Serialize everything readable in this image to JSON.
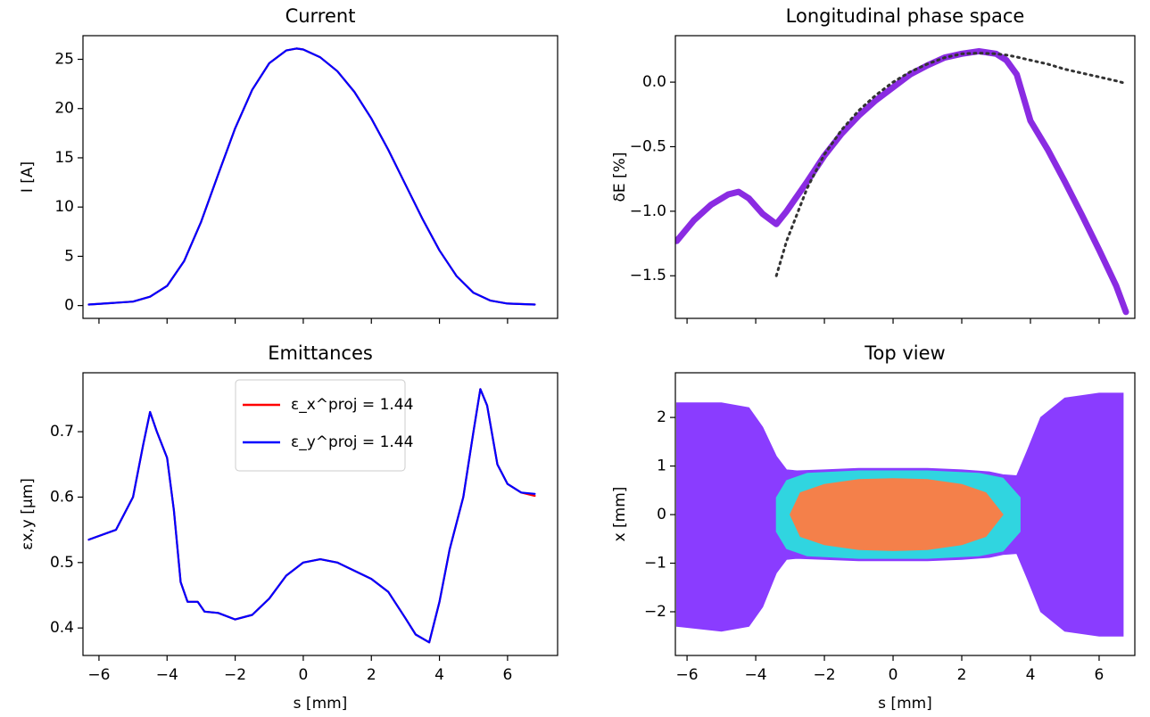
{
  "chart_data": [
    {
      "type": "line",
      "title": "Current",
      "ylabel": "I [A]",
      "x": [
        -6.3,
        -5,
        -4.5,
        -4,
        -3.5,
        -3,
        -2.5,
        -2,
        -1.5,
        -1,
        -0.5,
        -0.2,
        0,
        0.5,
        1,
        1.5,
        2,
        2.5,
        3,
        3.5,
        4,
        4.5,
        5,
        5.5,
        6,
        6.8
      ],
      "series": [
        {
          "color": "#ff0000",
          "values": [
            0.1,
            0.4,
            0.9,
            2.0,
            4.5,
            8.5,
            13.3,
            18.0,
            21.9,
            24.6,
            25.9,
            26.1,
            26.0,
            25.2,
            23.8,
            21.7,
            19.0,
            15.8,
            12.3,
            8.8,
            5.6,
            3.0,
            1.3,
            0.5,
            0.2,
            0.1
          ]
        },
        {
          "color": "#0000ff",
          "values": [
            0.1,
            0.4,
            0.9,
            2.0,
            4.5,
            8.5,
            13.3,
            18.0,
            21.9,
            24.6,
            25.9,
            26.1,
            26.0,
            25.2,
            23.8,
            21.7,
            19.0,
            15.8,
            12.3,
            8.8,
            5.6,
            3.0,
            1.3,
            0.5,
            0.2,
            0.1
          ]
        }
      ],
      "xlim": [
        -6.47,
        7.47
      ],
      "xticks": [
        -6,
        -4,
        -2,
        0,
        2,
        4,
        6
      ],
      "ylim": [
        -1.3,
        27.4
      ],
      "yticks": [
        0,
        5,
        10,
        15,
        20,
        25
      ]
    },
    {
      "type": "line",
      "title": "Longitudinal phase space",
      "ylabel": "δE [%]",
      "x": [
        -6.3,
        -5.8,
        -5.3,
        -4.8,
        -4.5,
        -4.2,
        -3.8,
        -3.4,
        -3.1,
        -2.5,
        -2,
        -1.5,
        -1,
        -0.5,
        0,
        0.5,
        1,
        1.5,
        2,
        2.5,
        3,
        3.3,
        3.6,
        4,
        4.5,
        5,
        5.5,
        6,
        6.5,
        6.78
      ],
      "series": [
        {
          "color": "#8a2be2",
          "width": 7,
          "values": [
            -1.23,
            -1.07,
            -0.95,
            -0.87,
            -0.85,
            -0.9,
            -1.02,
            -1.1,
            -1.0,
            -0.77,
            -0.57,
            -0.4,
            -0.26,
            -0.14,
            -0.04,
            0.06,
            0.13,
            0.19,
            0.22,
            0.24,
            0.22,
            0.17,
            0.06,
            -0.3,
            -0.52,
            -0.77,
            -1.03,
            -1.3,
            -1.58,
            -1.78
          ]
        },
        {
          "color": "#333333",
          "dash": true,
          "values": [
            null,
            null,
            null,
            null,
            null,
            null,
            null,
            -1.5,
            -1.23,
            -0.82,
            -0.56,
            -0.37,
            -0.22,
            -0.1,
            0.0,
            0.08,
            0.14,
            0.19,
            0.22,
            0.225,
            0.22,
            0.21,
            0.195,
            0.17,
            0.14,
            0.1,
            0.07,
            0.04,
            0.01,
            -0.01
          ]
        }
      ],
      "xlim": [
        -6.34,
        7.04
      ],
      "xticks": [
        -6,
        -4,
        -2,
        0,
        2,
        4,
        6
      ],
      "ylim": [
        -1.83,
        0.36
      ],
      "yticks": [
        {
          "value": -1.5,
          "label": "−1.5"
        },
        {
          "value": -1.0,
          "label": "−1.0"
        },
        {
          "value": -0.5,
          "label": "−0.5"
        },
        {
          "value": 0.0,
          "label": "0.0"
        }
      ]
    },
    {
      "type": "line",
      "title": "Emittances",
      "ylabel": "εx,y [μm]",
      "xlabel": "s [mm]",
      "legend": "upper center",
      "x": [
        -6.3,
        -5.5,
        -5,
        -4.7,
        -4.5,
        -4.3,
        -4,
        -3.8,
        -3.6,
        -3.4,
        -3.1,
        -2.9,
        -2.5,
        -2,
        -1.5,
        -1,
        -0.5,
        0,
        0.5,
        1,
        2,
        2.5,
        3,
        3.3,
        3.7,
        4,
        4.3,
        4.7,
        5,
        5.2,
        5.4,
        5.7,
        6,
        6.4,
        6.8
      ],
      "series": [
        {
          "name": "ε_x^proj = 1.44",
          "color": "#ff0000",
          "values": [
            0.535,
            0.55,
            0.6,
            0.68,
            0.73,
            0.7,
            0.66,
            0.58,
            0.47,
            0.44,
            0.44,
            0.425,
            0.423,
            0.413,
            0.42,
            0.445,
            0.48,
            0.5,
            0.505,
            0.5,
            0.475,
            0.455,
            0.415,
            0.39,
            0.378,
            0.44,
            0.52,
            0.6,
            0.7,
            0.765,
            0.74,
            0.65,
            0.62,
            0.607,
            0.602
          ]
        },
        {
          "name": "ε_y^proj = 1.44",
          "color": "#0000ff",
          "values": [
            0.535,
            0.55,
            0.6,
            0.68,
            0.73,
            0.7,
            0.66,
            0.58,
            0.47,
            0.44,
            0.44,
            0.425,
            0.423,
            0.413,
            0.42,
            0.445,
            0.48,
            0.5,
            0.505,
            0.5,
            0.475,
            0.455,
            0.415,
            0.39,
            0.378,
            0.44,
            0.52,
            0.6,
            0.7,
            0.765,
            0.74,
            0.65,
            0.62,
            0.607,
            0.605
          ]
        }
      ],
      "xlim": [
        -6.47,
        7.47
      ],
      "xticks": [
        {
          "value": -6,
          "label": "−6"
        },
        {
          "value": -4,
          "label": "−4"
        },
        {
          "value": -2,
          "label": "−2"
        },
        0,
        2,
        4,
        6
      ],
      "ylim": [
        0.358,
        0.79
      ],
      "yticks": [
        0.4,
        0.5,
        0.6,
        0.7
      ]
    },
    {
      "type": "area",
      "title": "Top view",
      "ylabel": "x [mm]",
      "xlabel": "s [mm]",
      "series": [
        {
          "color": "#8a3cff",
          "x": [
            -6.3,
            -5,
            -4.2,
            -3.8,
            -3.4,
            -3.1,
            -2.8,
            -2,
            -1,
            0,
            1,
            2,
            2.8,
            3.2,
            3.6,
            3.9,
            4.3,
            5,
            6,
            6.7
          ],
          "upper": [
            2.3,
            2.3,
            2.2,
            1.8,
            1.2,
            0.92,
            0.9,
            0.92,
            0.95,
            0.95,
            0.95,
            0.92,
            0.88,
            0.82,
            0.8,
            1.3,
            2.0,
            2.4,
            2.5,
            2.5
          ],
          "lower": [
            -2.3,
            -2.4,
            -2.3,
            -1.9,
            -1.2,
            -0.92,
            -0.9,
            -0.92,
            -0.95,
            -0.95,
            -0.95,
            -0.92,
            -0.88,
            -0.82,
            -0.8,
            -1.3,
            -2.0,
            -2.4,
            -2.5,
            -2.5
          ]
        },
        {
          "color": "#30d5e0",
          "x": [
            -3.4,
            -3.1,
            -2.5,
            -1,
            0,
            1,
            2.5,
            3.2,
            3.7
          ],
          "upper": [
            0.35,
            0.7,
            0.85,
            0.9,
            0.9,
            0.9,
            0.85,
            0.75,
            0.35
          ],
          "lower": [
            -0.35,
            -0.7,
            -0.85,
            -0.9,
            -0.9,
            -0.9,
            -0.85,
            -0.75,
            -0.35
          ]
        },
        {
          "color": "#f4804a",
          "x": [
            -3.0,
            -2.7,
            -2,
            -1,
            0,
            1,
            2,
            2.7,
            3.2
          ],
          "upper": [
            0,
            0.45,
            0.62,
            0.72,
            0.74,
            0.72,
            0.62,
            0.45,
            0
          ],
          "lower": [
            0,
            -0.45,
            -0.62,
            -0.72,
            -0.74,
            -0.72,
            -0.62,
            -0.45,
            0
          ]
        }
      ],
      "xlim": [
        -6.34,
        7.04
      ],
      "xticks": [
        {
          "value": -6,
          "label": "−6"
        },
        {
          "value": -4,
          "label": "−4"
        },
        {
          "value": -2,
          "label": "−2"
        },
        0,
        2,
        4,
        6
      ],
      "ylim": [
        -2.9,
        2.92
      ],
      "yticks": [
        {
          "value": -2,
          "label": "−2"
        },
        {
          "value": -1,
          "label": "−1"
        },
        0,
        1,
        2
      ]
    }
  ]
}
